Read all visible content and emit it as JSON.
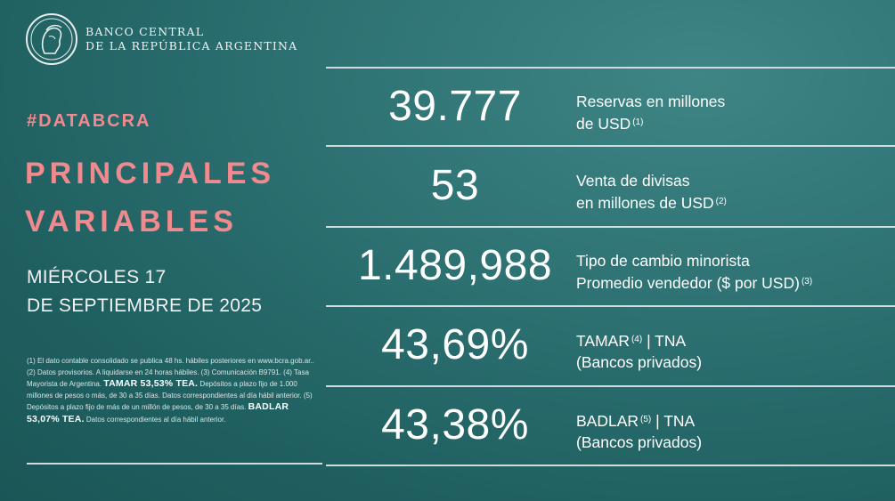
{
  "brand": {
    "line1": "BANCO CENTRAL",
    "line2": "DE LA REPÚBLICA ARGENTINA",
    "logo_icon": "bcra-seal-icon"
  },
  "hashtag": "#DATABCRA",
  "title": {
    "line1": "PRINCIPALES",
    "line2": "VARIABLES"
  },
  "date": {
    "line1": "MIÉRCOLES 17",
    "line2": "DE SEPTIEMBRE DE 2025"
  },
  "colors": {
    "background": "#2a6d6e",
    "accent": "#f08a8f",
    "text": "#ffffff"
  },
  "variables": [
    {
      "value": "39.777",
      "label_line1": "Reservas en millones",
      "label_line2": "de USD",
      "note_ref": "(1)"
    },
    {
      "value": "53",
      "label_line1": "Venta de divisas",
      "label_line2": "en millones de USD",
      "note_ref": "(2)"
    },
    {
      "value": "1.489,988",
      "label_line1": "Tipo de cambio minorista",
      "label_line2": "Promedio vendedor ($ por USD)",
      "note_ref": "(3)"
    },
    {
      "value": "43,69%",
      "label_line1": "TAMAR",
      "label_line1_ref": "(4)",
      "label_line1_suffix": "| TNA",
      "label_line2": "(Bancos privados)"
    },
    {
      "value": "43,38%",
      "label_line1": "BADLAR",
      "label_line1_ref": "(5)",
      "label_line1_suffix": "| TNA",
      "label_line2": "(Bancos privados)"
    }
  ],
  "footnotes": {
    "part1": "(1) El dato contable consolidado se publica 48 hs. hábiles posteriores en www.bcra.gob.ar.. (2) Datos provisorios. A liquidarse en 24 horas hábiles. (3) Comunicación B9791. (4) Tasa Mayorista de Argentina.",
    "tamar_bold": "TAMAR 53,53% TEA.",
    "part2": "Depósitos a plazo fijo de 1.000 millones de pesos o más, de 30 a 35 días. Datos correspondientes al día hábil anterior. (5) Depósitos a plazo fijo de más de un millón de pesos, de 30 a 35 días.",
    "badlar_bold": "BADLAR 53,07% TEA.",
    "part3": "Datos correspondientes al día hábil anterior."
  }
}
